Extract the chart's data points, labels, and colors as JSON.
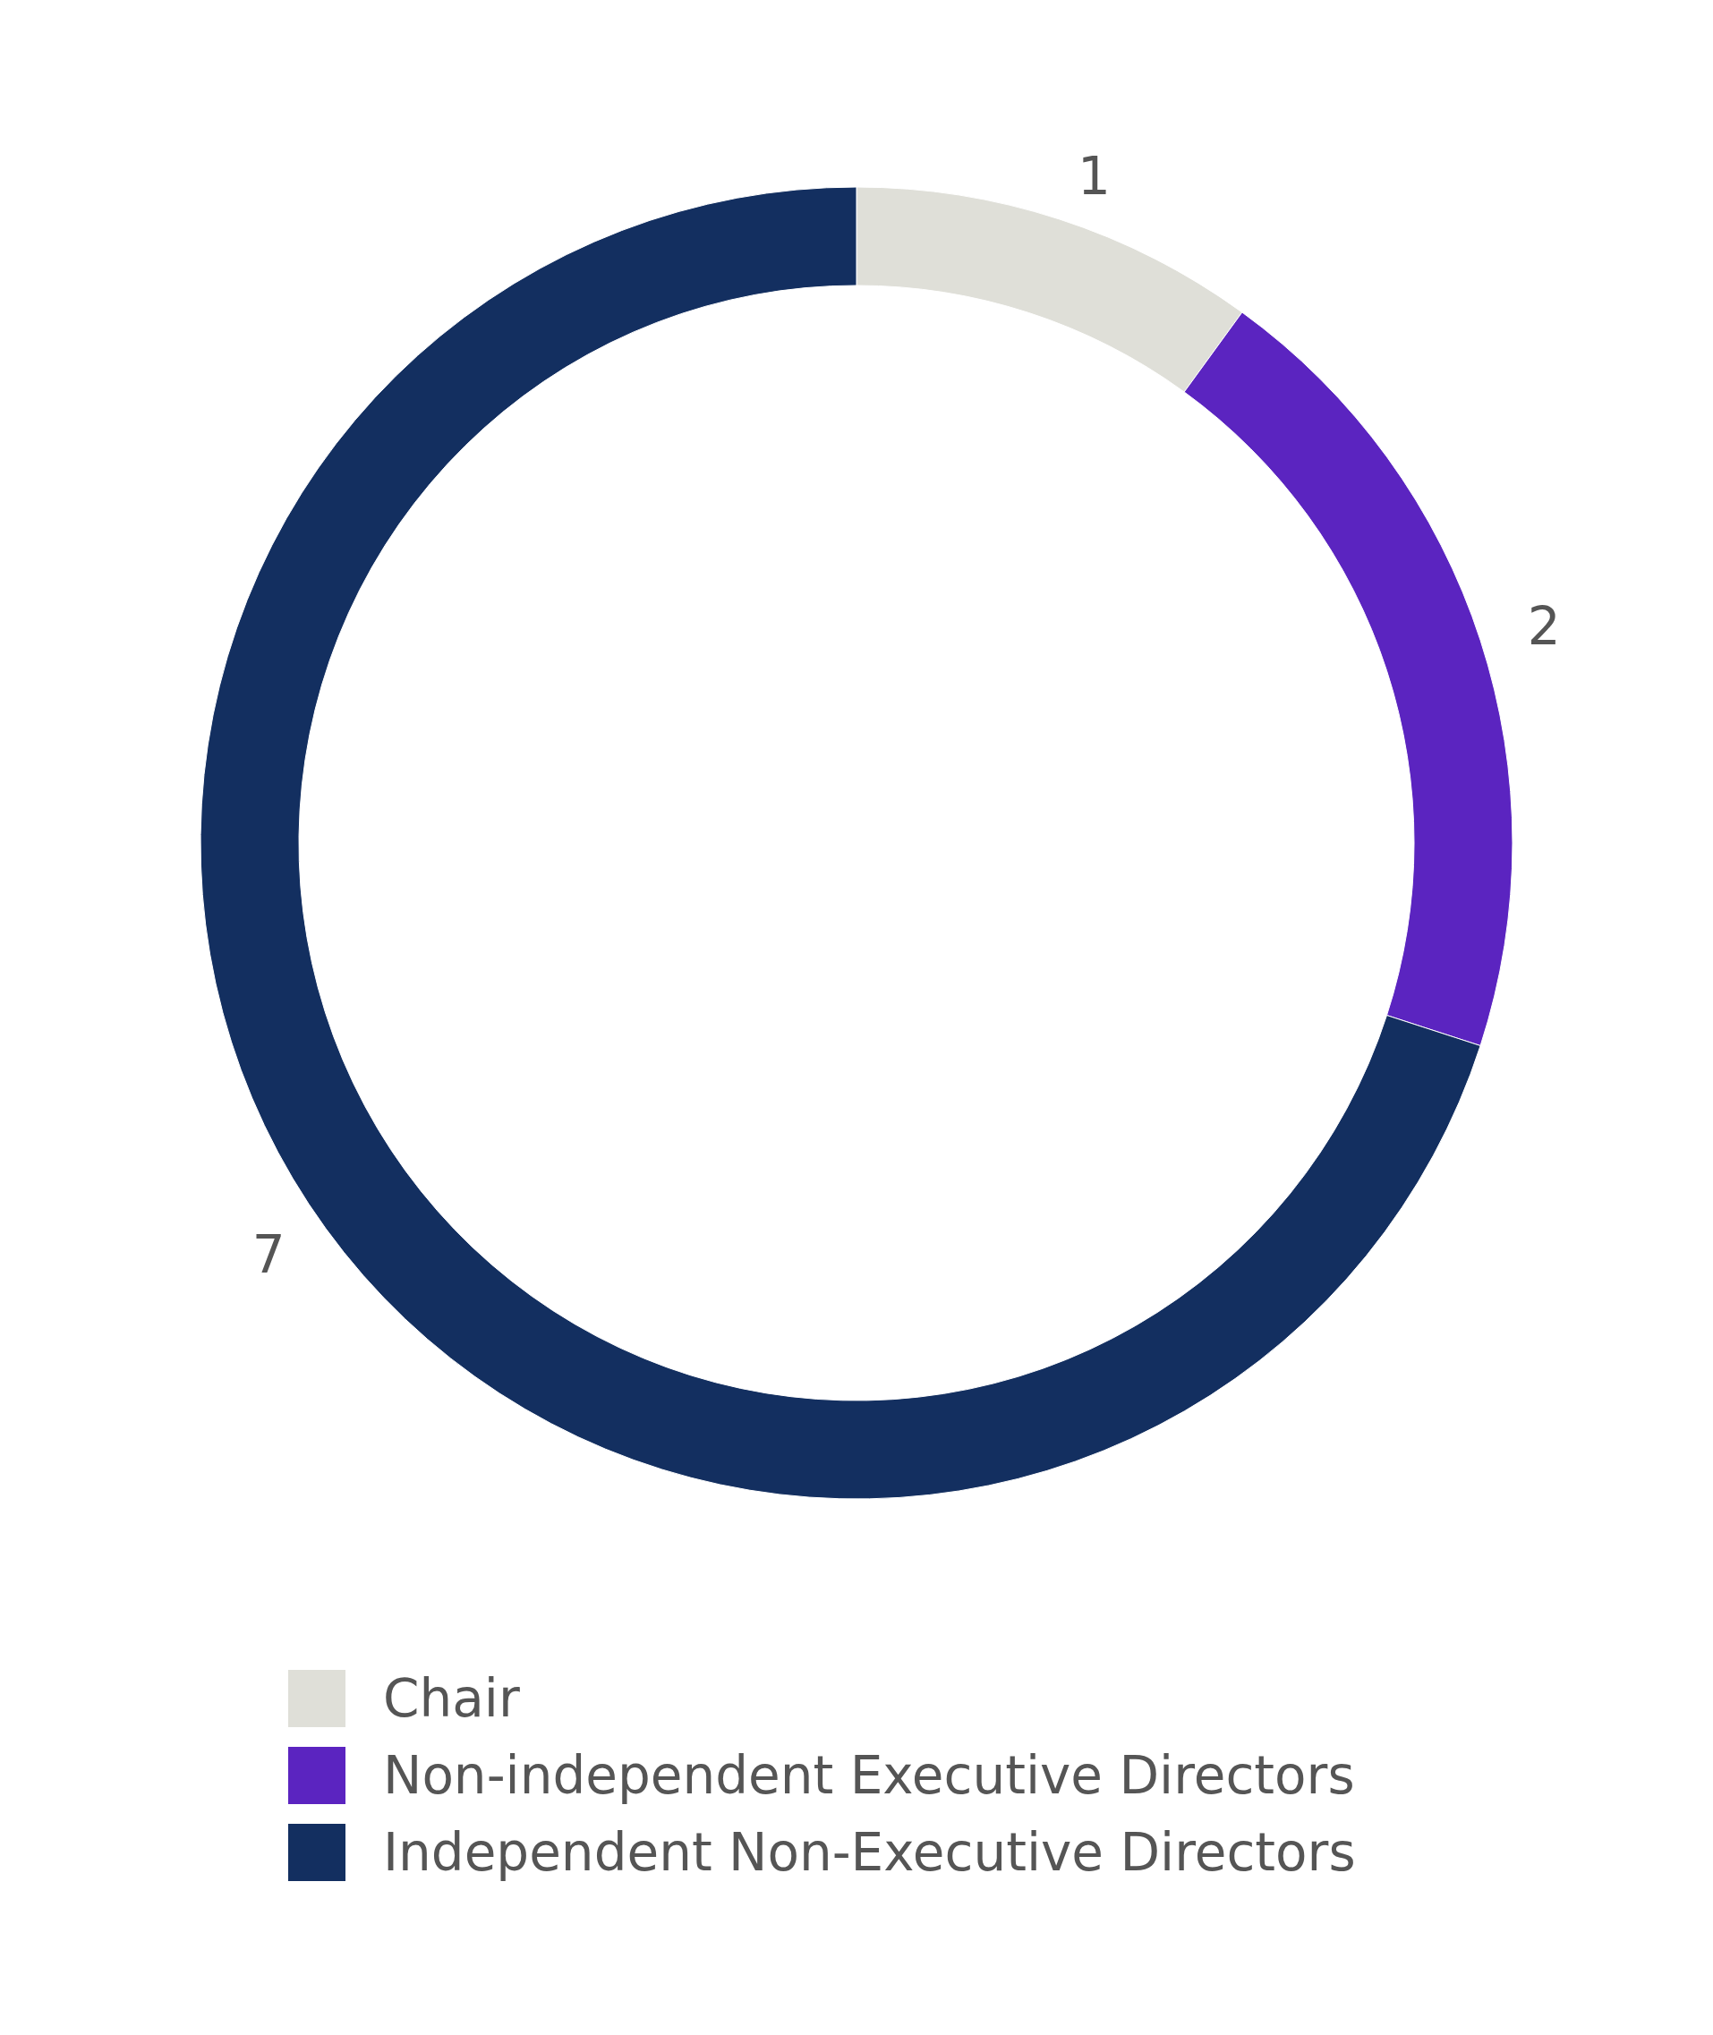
{
  "chart_data": {
    "type": "donut",
    "categories": [
      "Chair",
      "Non-independent Executive Directors",
      "Independent Non-Executive Directors"
    ],
    "values": [
      1,
      2,
      7
    ],
    "colors": [
      "#dfdfd8",
      "#5b24c0",
      "#132f60"
    ],
    "data_labels": true,
    "legend": "bottom"
  }
}
